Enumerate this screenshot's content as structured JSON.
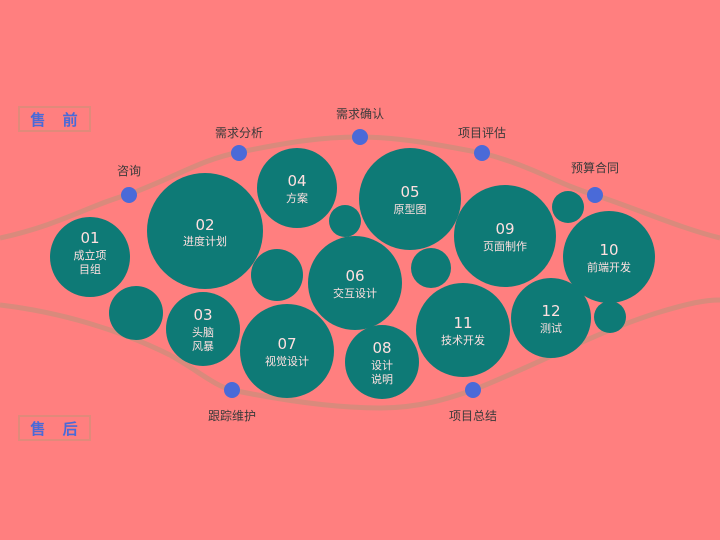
{
  "tags": {
    "pre_sale": "售 前",
    "post_sale": "售 后"
  },
  "top_stages": [
    "咨询",
    "需求分析",
    "需求确认",
    "项目评估",
    "预算合同"
  ],
  "bottom_stages": [
    "跟踪维护",
    "项目总结"
  ],
  "steps": [
    {
      "num": "01",
      "lines": [
        "成立项",
        "目组"
      ]
    },
    {
      "num": "02",
      "lines": [
        "进度计划"
      ]
    },
    {
      "num": "03",
      "lines": [
        "头脑",
        "风暴"
      ]
    },
    {
      "num": "04",
      "lines": [
        "方案"
      ]
    },
    {
      "num": "05",
      "lines": [
        "原型图"
      ]
    },
    {
      "num": "06",
      "lines": [
        "交互设计"
      ]
    },
    {
      "num": "07",
      "lines": [
        "视觉设计"
      ]
    },
    {
      "num": "08",
      "lines": [
        "设计",
        "说明"
      ]
    },
    {
      "num": "09",
      "lines": [
        "页面制作"
      ]
    },
    {
      "num": "10",
      "lines": [
        "前端开发"
      ]
    },
    {
      "num": "11",
      "lines": [
        "技术开发"
      ]
    },
    {
      "num": "12",
      "lines": [
        "测试"
      ]
    }
  ],
  "colors": {
    "background": "#ff7f7f",
    "circle": "#0e7a76",
    "curve": "#d98a7c",
    "dot": "#4a6ad8"
  }
}
